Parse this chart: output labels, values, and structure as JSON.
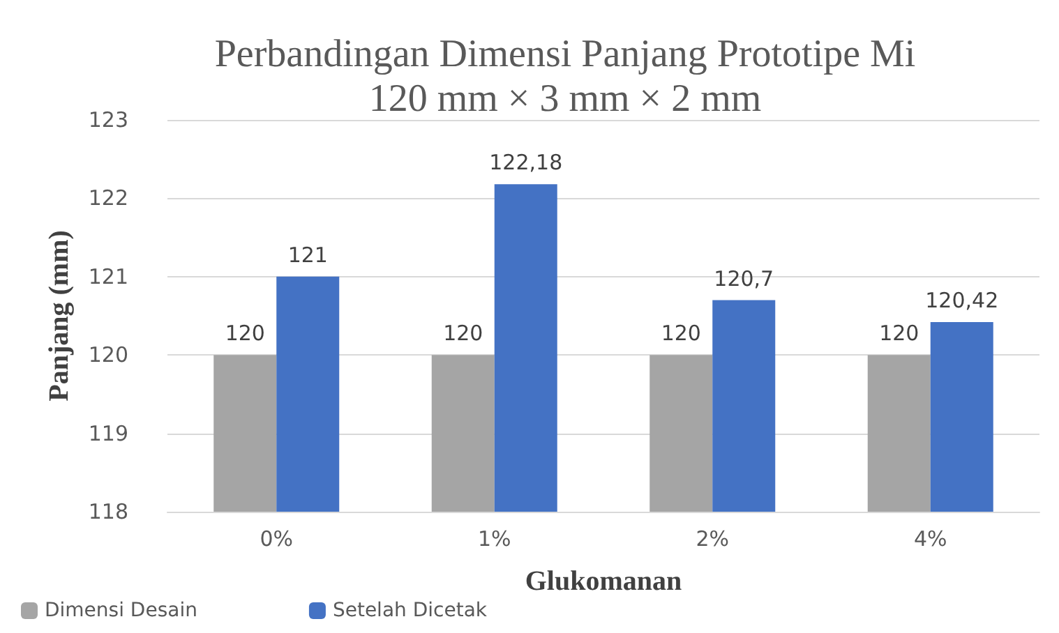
{
  "chart_data": {
    "type": "bar",
    "title": "Perbandingan Dimensi Panjang Prototipe Mi\n120 mm × 3 mm × 2 mm",
    "xlabel": "Glukomanan",
    "ylabel": "Panjang (mm)",
    "categories": [
      "0%",
      "1%",
      "2%",
      "4%"
    ],
    "series": [
      {
        "name": "Dimensi Desain",
        "color": "#a5a5a5",
        "values": [
          120,
          120,
          120,
          120
        ],
        "value_labels": [
          "120",
          "120",
          "120",
          "120"
        ]
      },
      {
        "name": "Setelah Dicetak",
        "color": "#4472c4",
        "values": [
          121,
          122.18,
          120.7,
          120.42
        ],
        "value_labels": [
          "121",
          "122,18",
          "120,7",
          "120,42"
        ]
      }
    ],
    "ylim": [
      118,
      123
    ],
    "yticks": [
      118,
      119,
      120,
      121,
      122,
      123
    ],
    "grid": "y",
    "legend": "bottom left"
  }
}
